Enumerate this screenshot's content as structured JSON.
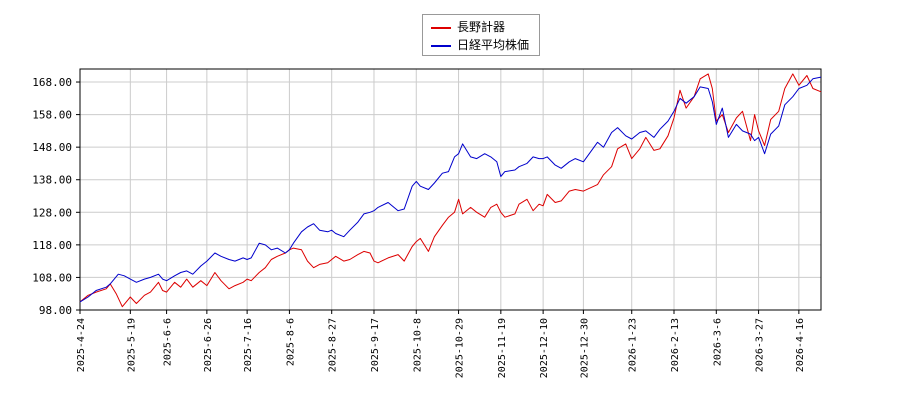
{
  "chart_data": {
    "type": "line",
    "title": "",
    "xlabel": "",
    "ylabel": "",
    "ylim": [
      98,
      172
    ],
    "xlim": [
      "2025-04-24",
      "2026-04-27"
    ],
    "grid": true,
    "legend": "top-center",
    "y_ticks": [
      "98.00",
      "108.00",
      "118.00",
      "128.00",
      "138.00",
      "148.00",
      "158.00",
      "168.00"
    ],
    "x_ticks": [
      "2025-4-24",
      "2025-5-19",
      "2025-6-6",
      "2025-6-26",
      "2025-7-16",
      "2025-8-6",
      "2025-8-27",
      "2025-9-17",
      "2025-10-8",
      "2025-10-29",
      "2025-11-19",
      "2025-12-10",
      "2025-12-30",
      "2026-1-23",
      "2026-2-13",
      "2026-3-6",
      "2026-3-27",
      "2026-4-16"
    ],
    "series": [
      {
        "name": "長野計器",
        "color": "#dd0000",
        "points": [
          [
            "2025-04-24",
            100.5
          ],
          [
            "2025-04-28",
            102.5
          ],
          [
            "2025-05-02",
            103.5
          ],
          [
            "2025-05-07",
            104.5
          ],
          [
            "2025-05-09",
            106.0
          ],
          [
            "2025-05-12",
            103.0
          ],
          [
            "2025-05-15",
            99.0
          ],
          [
            "2025-05-19",
            102.0
          ],
          [
            "2025-05-22",
            100.0
          ],
          [
            "2025-05-26",
            102.5
          ],
          [
            "2025-05-29",
            103.5
          ],
          [
            "2025-06-02",
            106.5
          ],
          [
            "2025-06-04",
            104.0
          ],
          [
            "2025-06-06",
            103.5
          ],
          [
            "2025-06-10",
            106.5
          ],
          [
            "2025-06-13",
            105.0
          ],
          [
            "2025-06-16",
            107.5
          ],
          [
            "2025-06-19",
            105.0
          ],
          [
            "2025-06-23",
            107.0
          ],
          [
            "2025-06-26",
            105.5
          ],
          [
            "2025-06-30",
            109.5
          ],
          [
            "2025-07-03",
            107.0
          ],
          [
            "2025-07-07",
            104.5
          ],
          [
            "2025-07-10",
            105.5
          ],
          [
            "2025-07-14",
            106.5
          ],
          [
            "2025-07-16",
            107.5
          ],
          [
            "2025-07-18",
            107.0
          ],
          [
            "2025-07-22",
            109.5
          ],
          [
            "2025-07-25",
            111.0
          ],
          [
            "2025-07-28",
            113.5
          ],
          [
            "2025-07-31",
            114.5
          ],
          [
            "2025-08-04",
            115.5
          ],
          [
            "2025-08-06",
            116.5
          ],
          [
            "2025-08-08",
            117.0
          ],
          [
            "2025-08-12",
            116.5
          ],
          [
            "2025-08-15",
            113.0
          ],
          [
            "2025-08-18",
            111.0
          ],
          [
            "2025-08-21",
            112.0
          ],
          [
            "2025-08-25",
            112.5
          ],
          [
            "2025-08-27",
            113.5
          ],
          [
            "2025-08-29",
            114.5
          ],
          [
            "2025-09-02",
            113.0
          ],
          [
            "2025-09-05",
            113.5
          ],
          [
            "2025-09-09",
            115.0
          ],
          [
            "2025-09-12",
            116.0
          ],
          [
            "2025-09-15",
            115.5
          ],
          [
            "2025-09-17",
            113.0
          ],
          [
            "2025-09-19",
            112.5
          ],
          [
            "2025-09-24",
            114.0
          ],
          [
            "2025-09-29",
            115.0
          ],
          [
            "2025-10-02",
            113.0
          ],
          [
            "2025-10-06",
            117.5
          ],
          [
            "2025-10-08",
            119.0
          ],
          [
            "2025-10-10",
            120.0
          ],
          [
            "2025-10-14",
            116.0
          ],
          [
            "2025-10-17",
            120.5
          ],
          [
            "2025-10-21",
            124.0
          ],
          [
            "2025-10-24",
            126.5
          ],
          [
            "2025-10-27",
            128.0
          ],
          [
            "2025-10-29",
            132.0
          ],
          [
            "2025-10-31",
            127.5
          ],
          [
            "2025-11-04",
            129.5
          ],
          [
            "2025-11-07",
            128.0
          ],
          [
            "2025-11-11",
            126.5
          ],
          [
            "2025-11-14",
            129.5
          ],
          [
            "2025-11-17",
            130.5
          ],
          [
            "2025-11-19",
            128.0
          ],
          [
            "2025-11-21",
            126.5
          ],
          [
            "2025-11-26",
            127.5
          ],
          [
            "2025-11-28",
            130.5
          ],
          [
            "2025-12-02",
            132.0
          ],
          [
            "2025-12-05",
            128.5
          ],
          [
            "2025-12-08",
            130.5
          ],
          [
            "2025-12-10",
            130.0
          ],
          [
            "2025-12-12",
            133.5
          ],
          [
            "2025-12-16",
            131.0
          ],
          [
            "2025-12-19",
            131.5
          ],
          [
            "2025-12-23",
            134.5
          ],
          [
            "2025-12-26",
            135.0
          ],
          [
            "2025-12-30",
            134.5
          ],
          [
            "2026-01-06",
            136.5
          ],
          [
            "2026-01-09",
            139.5
          ],
          [
            "2026-01-13",
            142.0
          ],
          [
            "2026-01-16",
            147.5
          ],
          [
            "2026-01-20",
            149.0
          ],
          [
            "2026-01-23",
            144.5
          ],
          [
            "2026-01-27",
            147.5
          ],
          [
            "2026-01-30",
            151.0
          ],
          [
            "2026-02-03",
            147.0
          ],
          [
            "2026-02-06",
            147.5
          ],
          [
            "2026-02-10",
            151.5
          ],
          [
            "2026-02-13",
            157.0
          ],
          [
            "2026-02-16",
            165.5
          ],
          [
            "2026-02-19",
            160.0
          ],
          [
            "2026-02-23",
            163.5
          ],
          [
            "2026-02-26",
            169.0
          ],
          [
            "2026-03-02",
            170.5
          ],
          [
            "2026-03-04",
            166.0
          ],
          [
            "2026-03-06",
            156.0
          ],
          [
            "2026-03-09",
            158.0
          ],
          [
            "2026-03-12",
            152.5
          ],
          [
            "2026-03-16",
            157.0
          ],
          [
            "2026-03-19",
            159.0
          ],
          [
            "2026-03-23",
            150.0
          ],
          [
            "2026-03-25",
            158.0
          ],
          [
            "2026-03-27",
            153.0
          ],
          [
            "2026-03-30",
            148.5
          ],
          [
            "2026-04-02",
            156.5
          ],
          [
            "2026-04-06",
            159.0
          ],
          [
            "2026-04-09",
            166.0
          ],
          [
            "2026-04-13",
            170.5
          ],
          [
            "2026-04-16",
            167.0
          ],
          [
            "2026-04-20",
            170.0
          ],
          [
            "2026-04-23",
            166.0
          ],
          [
            "2026-04-27",
            165.0
          ]
        ]
      },
      {
        "name": "日経平均株価",
        "color": "#0000cc",
        "points": [
          [
            "2025-04-24",
            100.5
          ],
          [
            "2025-04-28",
            102.0
          ],
          [
            "2025-05-02",
            104.0
          ],
          [
            "2025-05-07",
            105.0
          ],
          [
            "2025-05-09",
            106.0
          ],
          [
            "2025-05-13",
            109.0
          ],
          [
            "2025-05-16",
            108.5
          ],
          [
            "2025-05-19",
            107.5
          ],
          [
            "2025-05-22",
            106.5
          ],
          [
            "2025-05-26",
            107.5
          ],
          [
            "2025-05-29",
            108.0
          ],
          [
            "2025-06-02",
            109.0
          ],
          [
            "2025-06-04",
            107.5
          ],
          [
            "2025-06-06",
            107.0
          ],
          [
            "2025-06-10",
            108.5
          ],
          [
            "2025-06-13",
            109.5
          ],
          [
            "2025-06-16",
            110.0
          ],
          [
            "2025-06-19",
            109.0
          ],
          [
            "2025-06-23",
            111.5
          ],
          [
            "2025-06-26",
            113.0
          ],
          [
            "2025-06-30",
            115.5
          ],
          [
            "2025-07-03",
            114.5
          ],
          [
            "2025-07-07",
            113.5
          ],
          [
            "2025-07-10",
            113.0
          ],
          [
            "2025-07-14",
            114.0
          ],
          [
            "2025-07-16",
            113.5
          ],
          [
            "2025-07-18",
            114.0
          ],
          [
            "2025-07-22",
            118.5
          ],
          [
            "2025-07-25",
            118.0
          ],
          [
            "2025-07-28",
            116.5
          ],
          [
            "2025-07-31",
            117.0
          ],
          [
            "2025-08-04",
            115.5
          ],
          [
            "2025-08-06",
            116.5
          ],
          [
            "2025-08-08",
            118.5
          ],
          [
            "2025-08-12",
            122.0
          ],
          [
            "2025-08-15",
            123.5
          ],
          [
            "2025-08-18",
            124.5
          ],
          [
            "2025-08-21",
            122.5
          ],
          [
            "2025-08-25",
            122.0
          ],
          [
            "2025-08-27",
            122.5
          ],
          [
            "2025-08-29",
            121.5
          ],
          [
            "2025-09-02",
            120.5
          ],
          [
            "2025-09-05",
            122.5
          ],
          [
            "2025-09-09",
            125.0
          ],
          [
            "2025-09-12",
            127.5
          ],
          [
            "2025-09-15",
            128.0
          ],
          [
            "2025-09-17",
            128.5
          ],
          [
            "2025-09-19",
            129.5
          ],
          [
            "2025-09-24",
            131.0
          ],
          [
            "2025-09-29",
            128.5
          ],
          [
            "2025-10-02",
            129.0
          ],
          [
            "2025-10-06",
            136.0
          ],
          [
            "2025-10-08",
            137.5
          ],
          [
            "2025-10-10",
            136.0
          ],
          [
            "2025-10-14",
            135.0
          ],
          [
            "2025-10-17",
            137.0
          ],
          [
            "2025-10-21",
            140.0
          ],
          [
            "2025-10-24",
            140.5
          ],
          [
            "2025-10-27",
            145.0
          ],
          [
            "2025-10-29",
            146.0
          ],
          [
            "2025-10-31",
            149.0
          ],
          [
            "2025-11-04",
            145.0
          ],
          [
            "2025-11-07",
            144.5
          ],
          [
            "2025-11-11",
            146.0
          ],
          [
            "2025-11-14",
            145.0
          ],
          [
            "2025-11-17",
            143.5
          ],
          [
            "2025-11-19",
            139.0
          ],
          [
            "2025-11-21",
            140.5
          ],
          [
            "2025-11-26",
            141.0
          ],
          [
            "2025-11-28",
            142.0
          ],
          [
            "2025-12-02",
            143.0
          ],
          [
            "2025-12-05",
            145.0
          ],
          [
            "2025-12-08",
            144.5
          ],
          [
            "2025-12-10",
            144.5
          ],
          [
            "2025-12-12",
            145.0
          ],
          [
            "2025-12-16",
            142.5
          ],
          [
            "2025-12-19",
            141.5
          ],
          [
            "2025-12-23",
            143.5
          ],
          [
            "2025-12-26",
            144.5
          ],
          [
            "2025-12-30",
            143.5
          ],
          [
            "2026-01-06",
            149.5
          ],
          [
            "2026-01-09",
            148.0
          ],
          [
            "2026-01-13",
            152.5
          ],
          [
            "2026-01-16",
            154.0
          ],
          [
            "2026-01-20",
            151.5
          ],
          [
            "2026-01-23",
            150.5
          ],
          [
            "2026-01-27",
            152.5
          ],
          [
            "2026-01-30",
            153.0
          ],
          [
            "2026-02-03",
            151.0
          ],
          [
            "2026-02-06",
            153.5
          ],
          [
            "2026-02-10",
            156.0
          ],
          [
            "2026-02-13",
            159.0
          ],
          [
            "2026-02-16",
            163.0
          ],
          [
            "2026-02-19",
            161.5
          ],
          [
            "2026-02-23",
            163.5
          ],
          [
            "2026-02-26",
            166.5
          ],
          [
            "2026-03-02",
            166.0
          ],
          [
            "2026-03-04",
            162.0
          ],
          [
            "2026-03-06",
            155.0
          ],
          [
            "2026-03-09",
            160.0
          ],
          [
            "2026-03-12",
            151.0
          ],
          [
            "2026-03-16",
            155.0
          ],
          [
            "2026-03-19",
            153.0
          ],
          [
            "2026-03-23",
            152.0
          ],
          [
            "2026-03-25",
            150.0
          ],
          [
            "2026-03-27",
            151.0
          ],
          [
            "2026-03-30",
            146.0
          ],
          [
            "2026-04-02",
            152.0
          ],
          [
            "2026-04-06",
            154.5
          ],
          [
            "2026-04-09",
            161.0
          ],
          [
            "2026-04-13",
            163.5
          ],
          [
            "2026-04-16",
            166.0
          ],
          [
            "2026-04-20",
            167.0
          ],
          [
            "2026-04-23",
            169.0
          ],
          [
            "2026-04-27",
            169.5
          ]
        ]
      }
    ]
  }
}
